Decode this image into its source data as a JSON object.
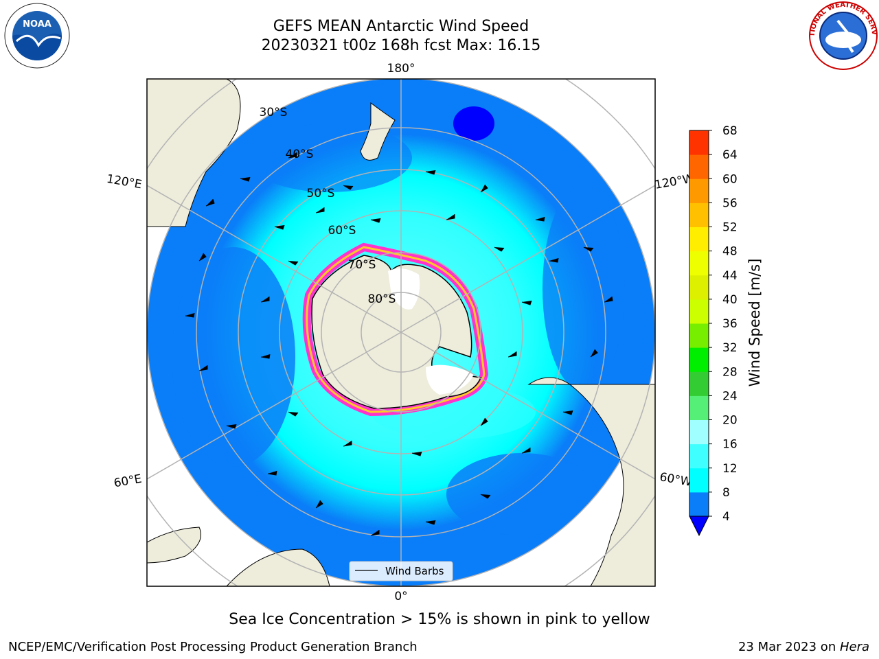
{
  "header": {
    "title_line1": "GEFS MEAN Antarctic Wind Speed",
    "title_line2": "20230321 t00z 168h fcst   Max: 16.15"
  },
  "map": {
    "lon_labels": {
      "top": "180°",
      "bottom": "0°",
      "left_upper": "120°E",
      "left_lower": "60°E",
      "right_upper": "120°W",
      "right_lower": "60°W"
    },
    "lat_labels": [
      "30°S",
      "40°S",
      "50°S",
      "60°S",
      "70°S",
      "80°S"
    ],
    "legend_label": "Wind Barbs",
    "colors": {
      "ocean_low": "#0a7df8",
      "ocean_mid": "#00ffff",
      "ocean_high": "#66ffff",
      "land": "#eeecdb",
      "ice": "#ff33cc",
      "gridline": "#b3b3b3"
    }
  },
  "colorbar": {
    "label": "Wind Speed [m/s]",
    "ticks": [
      "4",
      "8",
      "12",
      "16",
      "20",
      "24",
      "28",
      "32",
      "36",
      "40",
      "44",
      "48",
      "52",
      "56",
      "60",
      "64",
      "68"
    ],
    "colors": [
      "#0a7df8",
      "#00ffff",
      "#40ffff",
      "#a0ffff",
      "#55ee77",
      "#33cc33",
      "#00ee00",
      "#77ee00",
      "#ccff00",
      "#ddf000",
      "#eeff00",
      "#ffee00",
      "#ffc000",
      "#ff9900",
      "#ff6600",
      "#ff3300",
      "#ff0000"
    ],
    "extend_color": "#0000ff"
  },
  "notes": {
    "ice_note": "Sea Ice Concentration > 15% is shown in pink to yellow",
    "branch": "NCEP/EMC/Verification Post Processing Product Generation Branch",
    "date": "23 Mar 2023 on ",
    "machine": "Hera"
  },
  "logos": {
    "noaa": "NOAA",
    "nws": "NATIONAL WEATHER SERVICE"
  }
}
